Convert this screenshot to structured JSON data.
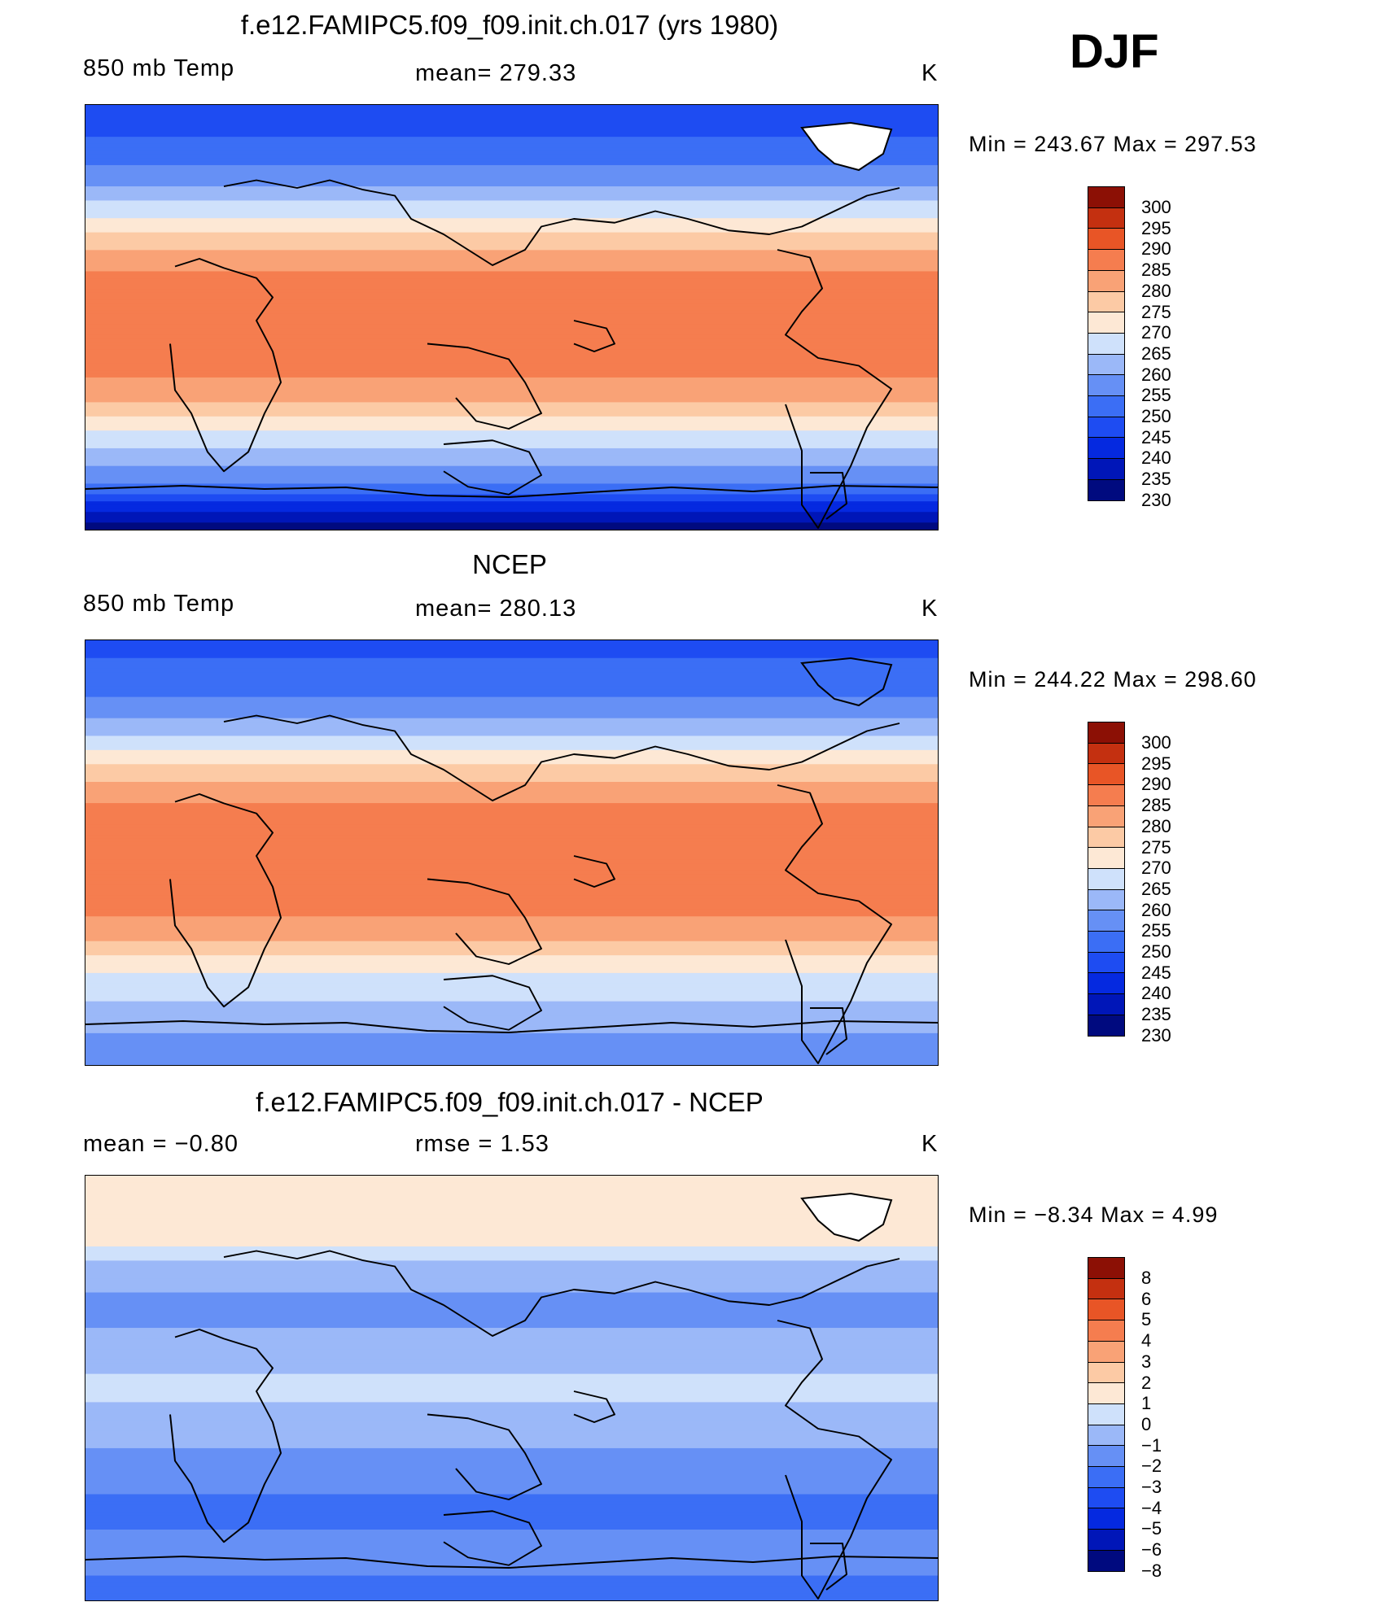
{
  "season": "DJF",
  "panels": [
    {
      "id": "model",
      "title": "f.e12.FAMIPC5.f09_f09.init.ch.017 (yrs 1980)",
      "left_label": "850 mb Temp",
      "center_label": "mean= 279.33",
      "units": "K",
      "minmax": "Min  =  243.67  Max  =  297.53"
    },
    {
      "id": "obs",
      "title": "NCEP",
      "left_label": "850 mb Temp",
      "center_label": "mean= 280.13",
      "units": "K",
      "minmax": "Min  =  244.22  Max  =  298.60"
    },
    {
      "id": "diff",
      "title": "f.e12.FAMIPC5.f09_f09.init.ch.017 - NCEP",
      "left_label": "mean =    −0.80",
      "center_label": "rmse =     1.53",
      "units": "K",
      "minmax": "Min  =    −8.34  Max  =      4.99"
    }
  ],
  "chart_data": [
    {
      "type": "heatmap",
      "title": "f.e12.FAMIPC5.f09_f09.init.ch.017 (yrs 1980)",
      "variable": "850 mb Temp",
      "units": "K",
      "mean": 279.33,
      "min": 243.67,
      "max": 297.53,
      "levels": [
        230,
        235,
        240,
        245,
        250,
        255,
        260,
        265,
        270,
        275,
        280,
        285,
        290,
        295,
        300
      ],
      "colorbar_labels": [
        "300",
        "295",
        "290",
        "285",
        "280",
        "275",
        "270",
        "265",
        "260",
        "255",
        "250",
        "245",
        "240",
        "235",
        "230"
      ],
      "zonal_mean_profile": {
        "lat": [
          -90,
          -70,
          -55,
          -45,
          -35,
          -20,
          0,
          20,
          30,
          40,
          50,
          60,
          70,
          90
        ],
        "value": [
          232,
          255,
          265,
          272,
          281,
          287,
          289,
          285,
          279,
          272,
          264,
          257,
          252,
          246
        ]
      }
    },
    {
      "type": "heatmap",
      "title": "NCEP",
      "variable": "850 mb Temp",
      "units": "K",
      "mean": 280.13,
      "min": 244.22,
      "max": 298.6,
      "levels": [
        230,
        235,
        240,
        245,
        250,
        255,
        260,
        265,
        270,
        275,
        280,
        285,
        290,
        295,
        300
      ],
      "colorbar_labels": [
        "300",
        "295",
        "290",
        "285",
        "280",
        "275",
        "270",
        "265",
        "260",
        "255",
        "250",
        "245",
        "240",
        "235",
        "230"
      ],
      "zonal_mean_profile": {
        "lat": [
          -90,
          -70,
          -55,
          -45,
          -35,
          -20,
          0,
          20,
          30,
          40,
          50,
          60,
          70,
          90
        ],
        "value": [
          256,
          262,
          268,
          274,
          282,
          288,
          290,
          286,
          280,
          273,
          265,
          258,
          253,
          248
        ]
      }
    },
    {
      "type": "heatmap",
      "title": "f.e12.FAMIPC5.f09_f09.init.ch.017 - NCEP",
      "variable": "850 mb Temp difference",
      "units": "K",
      "mean": -0.8,
      "rmse": 1.53,
      "min": -8.34,
      "max": 4.99,
      "levels": [
        -8,
        -6,
        -5,
        -4,
        -3,
        -2,
        -1,
        0,
        1,
        2,
        3,
        4,
        5,
        6,
        8
      ],
      "colorbar_labels": [
        "8",
        "6",
        "5",
        "4",
        "3",
        "2",
        "1",
        "0",
        "−1",
        "−2",
        "−3",
        "−4",
        "−5",
        "−6",
        "−8"
      ],
      "zonal_mean_profile": {
        "lat": [
          -90,
          -70,
          -55,
          -45,
          -35,
          -20,
          0,
          20,
          30,
          40,
          50,
          60,
          70,
          90
        ],
        "value": [
          -2.5,
          -1.5,
          -2.2,
          -2.0,
          -1.6,
          -0.6,
          0.3,
          -0.8,
          -1.2,
          -1.0,
          -0.5,
          1.0,
          1.5,
          2.0
        ]
      }
    }
  ],
  "colors": {
    "abs_scale": [
      "#000a7f",
      "#0016b8",
      "#0529e0",
      "#1e4cf2",
      "#3b6ef5",
      "#6690f5",
      "#9bb8f8",
      "#cfe1fb",
      "#fde8d5",
      "#fccaa5",
      "#f9a276",
      "#f57d4f",
      "#e85526",
      "#c43010",
      "#8c1005"
    ],
    "diff_scale": [
      "#000a7f",
      "#0016b8",
      "#0529e0",
      "#1e4cf2",
      "#3b6ef5",
      "#6690f5",
      "#9bb8f8",
      "#cfe1fb",
      "#fde8d5",
      "#fccaa5",
      "#f9a276",
      "#f57d4f",
      "#e85526",
      "#c43010",
      "#8c1005"
    ]
  }
}
